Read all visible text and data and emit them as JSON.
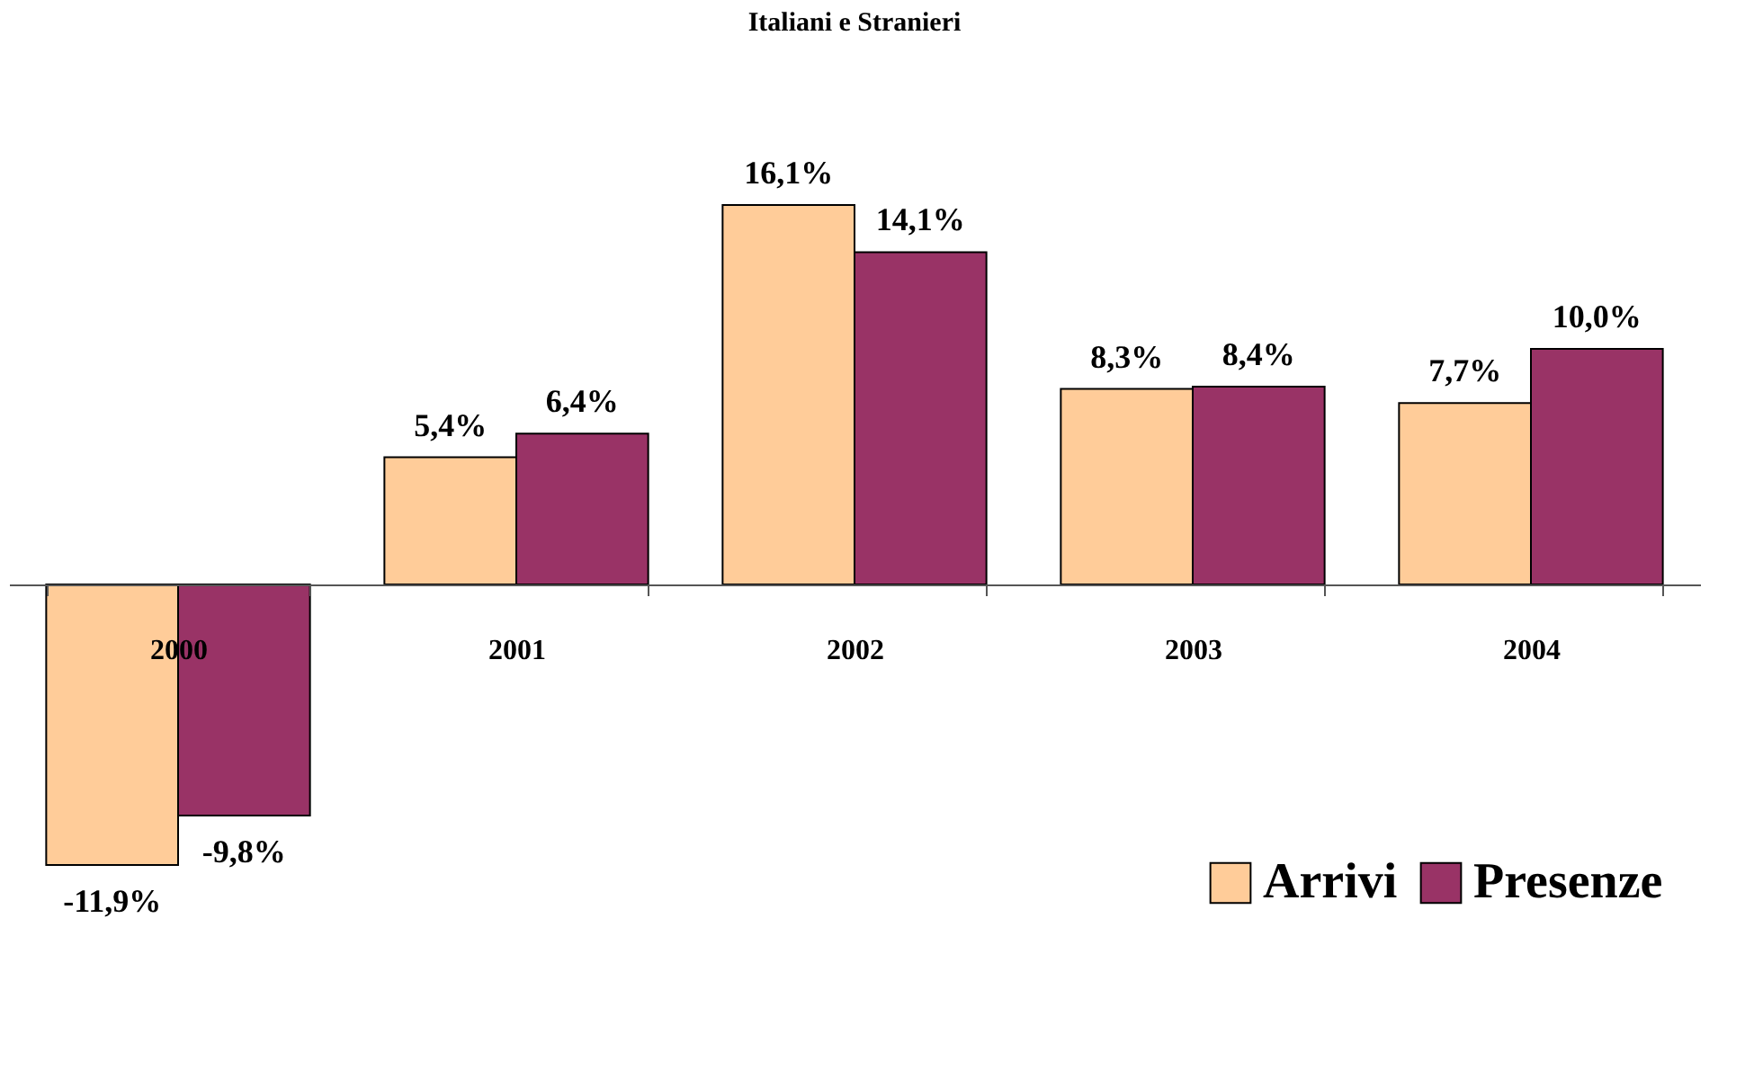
{
  "chart_data": {
    "type": "bar",
    "title": "Italiani e Stranieri",
    "categories": [
      "2000",
      "2001",
      "2002",
      "2003",
      "2004"
    ],
    "series": [
      {
        "name": "Arrivi",
        "color": "#ffcc99",
        "values": [
          -11.9,
          5.4,
          16.1,
          8.3,
          7.7
        ],
        "value_labels": [
          "-11,9%",
          "5,4%",
          "16,1%",
          "8,3%",
          "7,7%"
        ]
      },
      {
        "name": "Presenze",
        "color": "#993366",
        "values": [
          -9.8,
          6.4,
          14.1,
          8.4,
          10.0
        ],
        "value_labels": [
          "-9,8%",
          "6,4%",
          "14,1%",
          "8,4%",
          "10,0%"
        ]
      }
    ],
    "legend": "bottom right",
    "grid": false
  }
}
